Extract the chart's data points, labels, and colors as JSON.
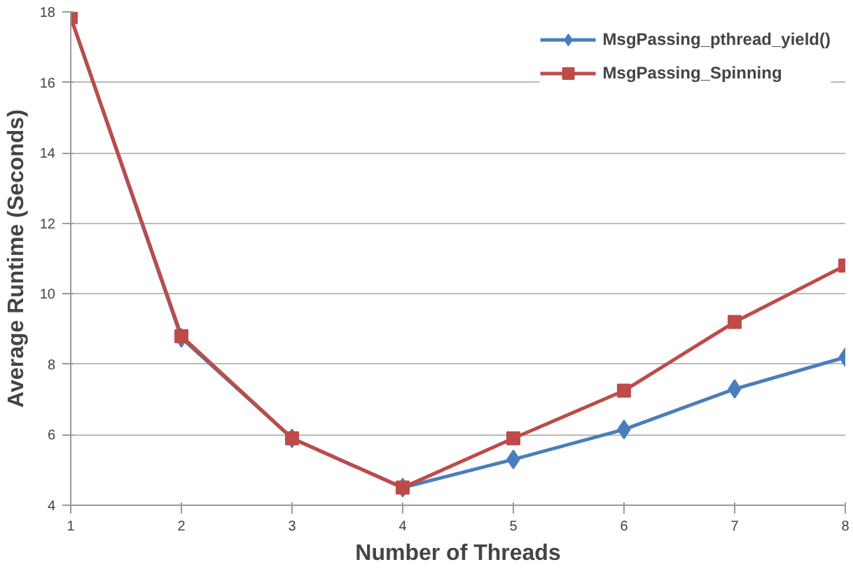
{
  "chart_data": {
    "type": "line",
    "xlabel": "Number of Threads",
    "ylabel": "Average Runtime (Seconds)",
    "x": [
      1,
      2,
      3,
      4,
      5,
      6,
      7,
      8
    ],
    "series": [
      {
        "name": "MsgPassing_pthread_yield()",
        "color": "#4a7ebb",
        "marker": "diamond",
        "values": [
          17.85,
          8.75,
          5.9,
          4.5,
          5.3,
          6.15,
          7.3,
          8.2
        ]
      },
      {
        "name": "MsgPassing_Spinning",
        "color": "#be4b48",
        "marker": "square",
        "values": [
          17.85,
          8.8,
          5.9,
          4.5,
          5.9,
          7.25,
          9.2,
          10.8
        ]
      }
    ],
    "xlim": [
      1,
      8
    ],
    "ylim": [
      4,
      18
    ],
    "xticks": [
      1,
      2,
      3,
      4,
      5,
      6,
      7,
      8
    ],
    "yticks": [
      4,
      6,
      8,
      10,
      12,
      14,
      16,
      18
    ],
    "grid": "y",
    "legend": "top right",
    "line_style": "solid"
  }
}
